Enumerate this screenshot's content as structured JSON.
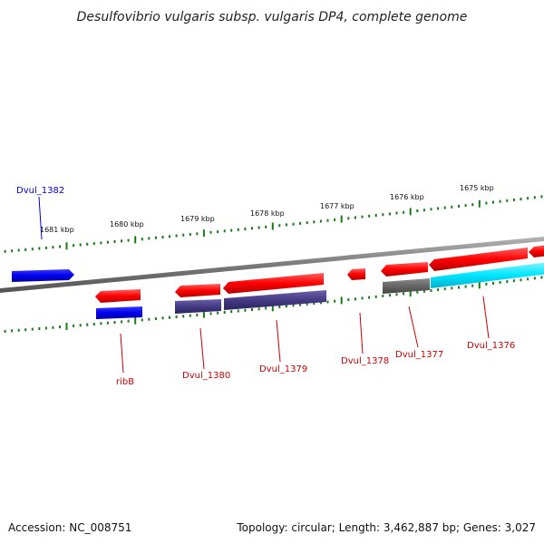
{
  "title": "Desulfovibrio vulgaris subsp. vulgaris DP4, complete genome",
  "footer": {
    "accession": "Accession: NC_008751",
    "summary": "Topology: circular; Length: 3,462,887 bp; Genes: 3,027"
  },
  "ticks": [
    "1681 kbp",
    "1680 kbp",
    "1679 kbp",
    "1678 kbp",
    "1677 kbp",
    "1676 kbp",
    "1675 kbp"
  ],
  "genes": [
    {
      "id": "Dvul_1382",
      "color": "#0000cc"
    },
    {
      "id": "ribB",
      "color": "#cc0000"
    },
    {
      "id": "Dvul_1380",
      "color": "#cc0000"
    },
    {
      "id": "Dvul_1379",
      "color": "#cc0000"
    },
    {
      "id": "Dvul_1378",
      "color": "#cc0000"
    },
    {
      "id": "Dvul_1377",
      "color": "#cc0000"
    },
    {
      "id": "Dvul_1376",
      "color": "#cc0000"
    }
  ],
  "colors": {
    "cds_red": "#ff1a1a",
    "gene_blue": "#0000e6",
    "gene_purple": "#4a3f8a",
    "gene_gray": "#666666",
    "gene_cyan": "#00e5ff",
    "tick_green": "#1a7a1a",
    "backbone": "#808080"
  }
}
